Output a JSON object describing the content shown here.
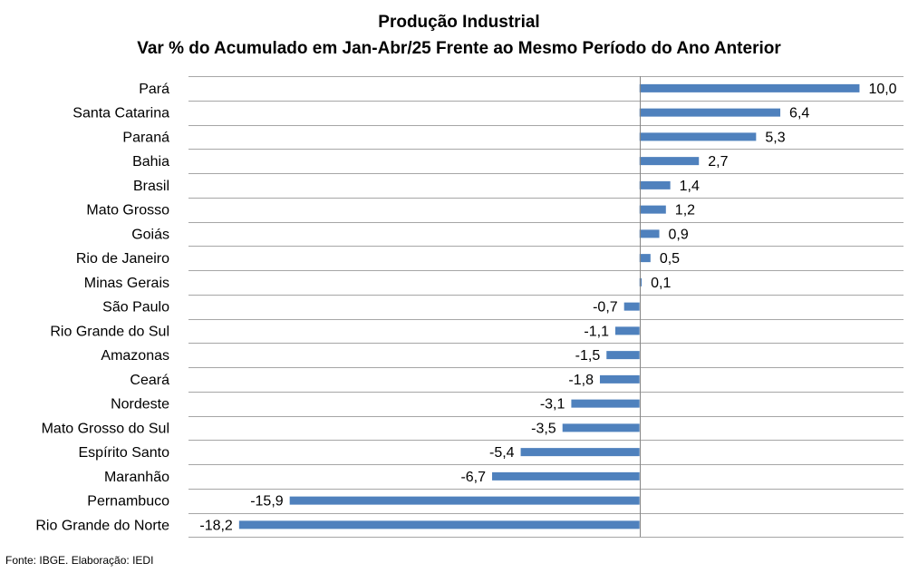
{
  "chart_data": {
    "type": "bar",
    "orientation": "horizontal",
    "title": "Produção Industrial",
    "subtitle": "Var % do Acumulado em Jan-Abr/25 Frente ao Mesmo Período do Ano Anterior",
    "categories": [
      "Pará",
      "Santa Catarina",
      "Paraná",
      "Bahia",
      "Brasil",
      "Mato Grosso",
      "Goiás",
      "Rio de Janeiro",
      "Minas Gerais",
      "São Paulo",
      "Rio Grande do Sul",
      "Amazonas",
      "Ceará",
      "Nordeste",
      "Mato Grosso do Sul",
      "Espírito Santo",
      "Maranhão",
      "Pernambuco",
      "Rio Grande do Norte"
    ],
    "values": [
      10.0,
      6.4,
      5.3,
      2.7,
      1.4,
      1.2,
      0.9,
      0.5,
      0.1,
      -0.7,
      -1.1,
      -1.5,
      -1.8,
      -3.1,
      -3.5,
      -5.4,
      -6.7,
      -15.9,
      -18.2
    ],
    "value_labels": [
      "10,0",
      "6,4",
      "5,3",
      "2,7",
      "1,4",
      "1,2",
      "0,9",
      "0,5",
      "0,1",
      "-0,7",
      "-1,1",
      "-1,5",
      "-1,8",
      "-3,1",
      "-3,5",
      "-5,4",
      "-6,7",
      "-15,9",
      "-18,2"
    ],
    "xlim": [
      -20.5,
      12.0
    ],
    "grid": true,
    "bar_color": "#4f81bd",
    "gridline_color": "#a6a6a6"
  },
  "source": "Fonte: IBGE. Elaboração: IEDI"
}
